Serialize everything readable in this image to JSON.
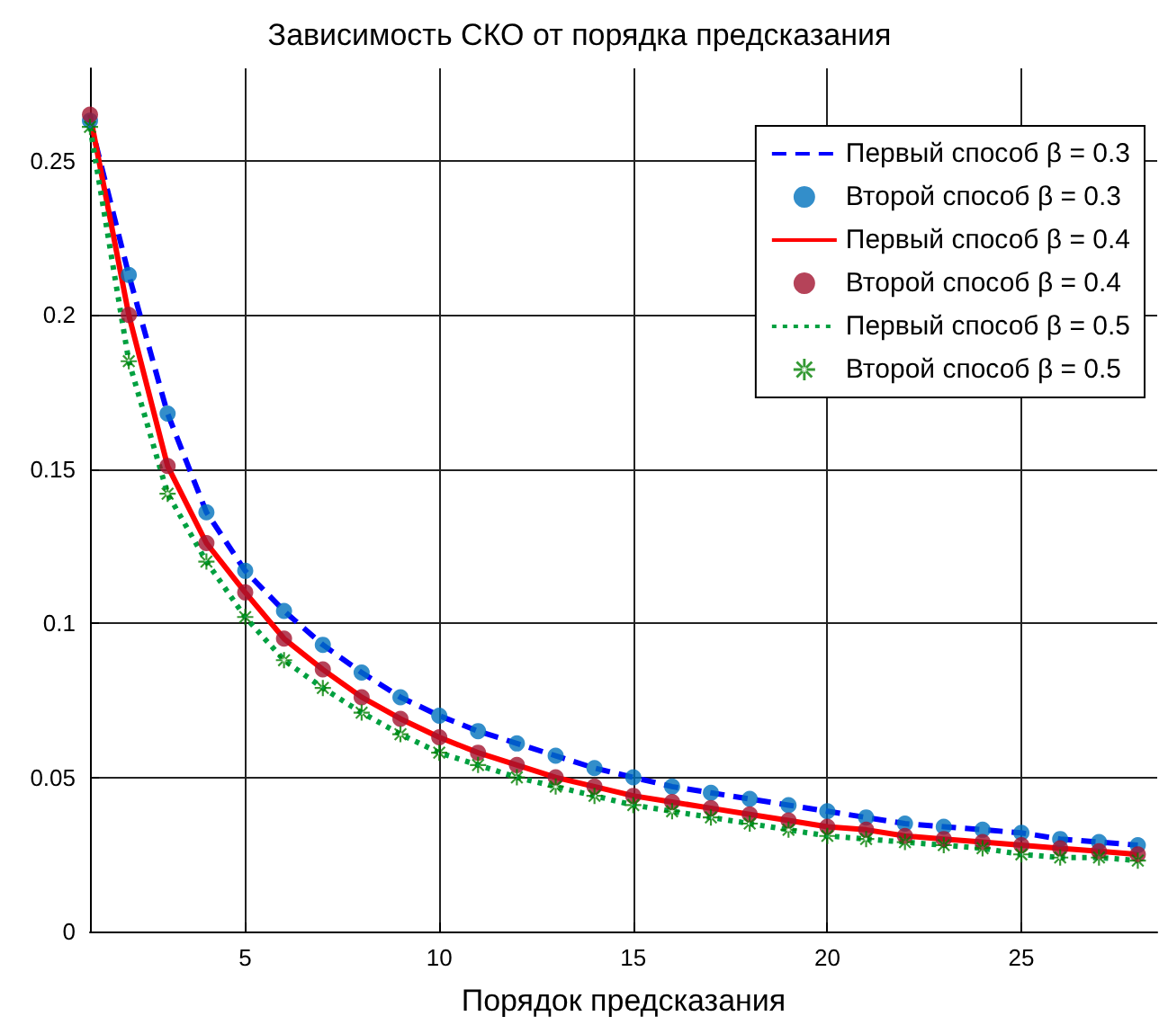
{
  "chart_data": {
    "type": "line",
    "title": "Зависимость СКО от порядка предсказания",
    "xlabel": "Порядок предсказания",
    "x": [
      1,
      2,
      3,
      4,
      5,
      6,
      7,
      8,
      9,
      10,
      11,
      12,
      13,
      14,
      15,
      16,
      17,
      18,
      19,
      20,
      21,
      22,
      23,
      24,
      25,
      26,
      27,
      28
    ],
    "xlim": [
      1,
      28.5
    ],
    "xticks": [
      5,
      10,
      15,
      20,
      25
    ],
    "ylim": [
      0,
      0.28
    ],
    "yticks": [
      0,
      0.05,
      0.1,
      0.15,
      0.2,
      0.25
    ],
    "grid": true,
    "legend": "top right",
    "series": [
      {
        "name": "Первый способ β = 0.3",
        "marker": "none",
        "line_style": "dashed",
        "color": "#0000ff",
        "values": [
          0.263,
          0.213,
          0.168,
          0.136,
          0.117,
          0.104,
          0.093,
          0.084,
          0.076,
          0.07,
          0.065,
          0.061,
          0.057,
          0.053,
          0.05,
          0.047,
          0.045,
          0.043,
          0.041,
          0.039,
          0.037,
          0.035,
          0.034,
          0.033,
          0.032,
          0.03,
          0.029,
          0.028
        ]
      },
      {
        "name": "Второй способ β = 0.3",
        "type": "scatter",
        "marker": "circle",
        "color": "#0072bd",
        "values": [
          0.263,
          0.213,
          0.168,
          0.136,
          0.117,
          0.104,
          0.093,
          0.084,
          0.076,
          0.07,
          0.065,
          0.061,
          0.057,
          0.053,
          0.05,
          0.047,
          0.045,
          0.043,
          0.041,
          0.039,
          0.037,
          0.035,
          0.034,
          0.033,
          0.032,
          0.03,
          0.029,
          0.028
        ]
      },
      {
        "name": "Первый способ β = 0.4",
        "marker": "none",
        "line_style": "solid",
        "color": "#ff0000",
        "values": [
          0.265,
          0.2,
          0.151,
          0.126,
          0.11,
          0.095,
          0.085,
          0.076,
          0.069,
          0.063,
          0.058,
          0.054,
          0.05,
          0.047,
          0.044,
          0.042,
          0.04,
          0.038,
          0.036,
          0.034,
          0.033,
          0.031,
          0.03,
          0.029,
          0.028,
          0.027,
          0.026,
          0.025
        ]
      },
      {
        "name": "Второй способ β = 0.4",
        "type": "scatter",
        "marker": "circle",
        "color": "#a2142f",
        "values": [
          0.265,
          0.2,
          0.151,
          0.126,
          0.11,
          0.095,
          0.085,
          0.076,
          0.069,
          0.063,
          0.058,
          0.054,
          0.05,
          0.047,
          0.044,
          0.042,
          0.04,
          0.038,
          0.036,
          0.034,
          0.033,
          0.031,
          0.03,
          0.029,
          0.028,
          0.027,
          0.026,
          0.025
        ]
      },
      {
        "name": "Первый способ β = 0.5",
        "marker": "none",
        "line_style": "dotted",
        "color": "#00a040",
        "values": [
          0.261,
          0.185,
          0.142,
          0.12,
          0.102,
          0.088,
          0.079,
          0.071,
          0.064,
          0.058,
          0.054,
          0.05,
          0.047,
          0.044,
          0.041,
          0.039,
          0.037,
          0.035,
          0.033,
          0.031,
          0.03,
          0.029,
          0.028,
          0.027,
          0.025,
          0.024,
          0.024,
          0.023
        ]
      },
      {
        "name": "Второй способ β = 0.5",
        "type": "scatter",
        "marker": "star",
        "color": "#008000",
        "values": [
          0.261,
          0.185,
          0.142,
          0.12,
          0.102,
          0.088,
          0.079,
          0.071,
          0.064,
          0.058,
          0.054,
          0.05,
          0.047,
          0.044,
          0.041,
          0.039,
          0.037,
          0.035,
          0.033,
          0.031,
          0.03,
          0.029,
          0.028,
          0.027,
          0.025,
          0.024,
          0.024,
          0.023
        ]
      }
    ]
  }
}
